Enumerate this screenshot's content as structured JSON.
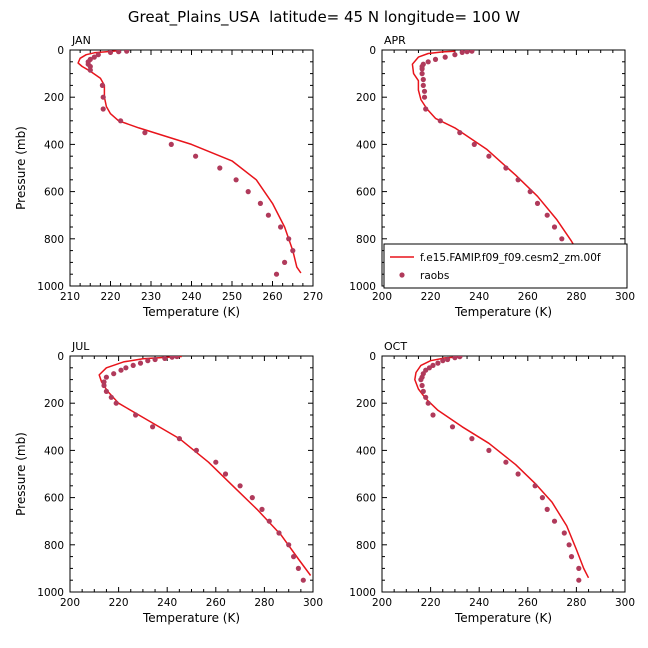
{
  "figure": {
    "title": "Great_Plains_USA  latitude= 45 N longitude= 100 W"
  },
  "colors": {
    "model_line": "#e8141b",
    "obs_marker": "#b03a5b",
    "axis": "#000000"
  },
  "chart_data": [
    {
      "type": "line",
      "panel": "JAN",
      "xlabel": "Temperature (K)",
      "ylabel": "Pressure (mb)",
      "xlim": [
        210,
        270
      ],
      "ylim": [
        1000,
        0
      ],
      "x_ticks": [
        210,
        220,
        230,
        240,
        250,
        260,
        270
      ],
      "y_ticks": [
        0,
        200,
        400,
        600,
        800,
        1000
      ],
      "legend": null,
      "series": [
        {
          "name": "",
          "kind": "line",
          "points": [
            [
              222,
              3
            ],
            [
              219,
              7
            ],
            [
              216,
              12
            ],
            [
              214,
              20
            ],
            [
              212.5,
              35
            ],
            [
              212,
              55
            ],
            [
              213,
              70
            ],
            [
              215,
              90
            ],
            [
              217.5,
              120
            ],
            [
              218.5,
              150
            ],
            [
              218.5,
              200
            ],
            [
              219,
              240
            ],
            [
              220,
              270
            ],
            [
              222,
              300
            ],
            [
              227,
              330
            ],
            [
              240,
              400
            ],
            [
              250,
              470
            ],
            [
              256,
              550
            ],
            [
              260,
              650
            ],
            [
              263,
              750
            ],
            [
              265,
              850
            ],
            [
              266,
              920
            ],
            [
              267,
              945
            ]
          ]
        },
        {
          "name": "",
          "kind": "markers",
          "points": [
            [
              224,
              5
            ],
            [
              222,
              7
            ],
            [
              220,
              10
            ],
            [
              217,
              20
            ],
            [
              216,
              30
            ],
            [
              215,
              40
            ],
            [
              214.5,
              50
            ],
            [
              214.5,
              60
            ],
            [
              215,
              70
            ],
            [
              215,
              85
            ],
            [
              218,
              150
            ],
            [
              218.2,
              200
            ],
            [
              218.2,
              250
            ],
            [
              222.5,
              300
            ],
            [
              228.5,
              350
            ],
            [
              235,
              400
            ],
            [
              241,
              450
            ],
            [
              247,
              500
            ],
            [
              251,
              550
            ],
            [
              254,
              600
            ],
            [
              257,
              650
            ],
            [
              259,
              700
            ],
            [
              262,
              750
            ],
            [
              264,
              800
            ],
            [
              265,
              850
            ],
            [
              263,
              900
            ],
            [
              261,
              950
            ]
          ]
        }
      ]
    },
    {
      "type": "line",
      "panel": "APR",
      "xlabel": "Temperature (K)",
      "ylabel": "",
      "xlim": [
        200,
        300
      ],
      "ylim": [
        1000,
        0
      ],
      "x_ticks": [
        200,
        220,
        240,
        260,
        280,
        300
      ],
      "y_ticks": [
        0,
        200,
        400,
        600,
        800,
        1000
      ],
      "legend": {
        "position": "lower-right",
        "entries": [
          {
            "label": "f.e15.FAMIP.f09_f09.cesm2_zm.00f",
            "kind": "line"
          },
          {
            "label": "raobs",
            "kind": "markers"
          }
        ]
      },
      "series": [
        {
          "name": "f.e15.FAMIP.f09_f09.cesm2_zm.00f",
          "kind": "line",
          "points": [
            [
              230,
              5
            ],
            [
              225,
              8
            ],
            [
              219,
              15
            ],
            [
              215,
              30
            ],
            [
              212.5,
              60
            ],
            [
              213,
              100
            ],
            [
              215,
              130
            ],
            [
              215,
              170
            ],
            [
              216,
              210
            ],
            [
              218.5,
              250
            ],
            [
              222,
              290
            ],
            [
              230,
              330
            ],
            [
              243,
              420
            ],
            [
              255,
              530
            ],
            [
              264,
              620
            ],
            [
              272,
              720
            ],
            [
              278,
              810
            ],
            [
              282,
              880
            ],
            [
              285,
              930
            ]
          ]
        },
        {
          "name": "raobs",
          "kind": "markers",
          "points": [
            [
              237,
              5
            ],
            [
              235,
              7
            ],
            [
              233,
              10
            ],
            [
              230,
              20
            ],
            [
              226,
              30
            ],
            [
              222,
              40
            ],
            [
              219,
              50
            ],
            [
              217,
              60
            ],
            [
              216.5,
              70
            ],
            [
              216.5,
              80
            ],
            [
              216.5,
              100
            ],
            [
              217,
              125
            ],
            [
              217,
              150
            ],
            [
              217.5,
              175
            ],
            [
              217.5,
              200
            ],
            [
              218,
              250
            ],
            [
              224,
              300
            ],
            [
              232,
              350
            ],
            [
              238,
              400
            ],
            [
              244,
              450
            ],
            [
              251,
              500
            ],
            [
              256,
              550
            ],
            [
              261,
              600
            ],
            [
              264,
              650
            ],
            [
              268,
              700
            ],
            [
              271,
              750
            ],
            [
              274,
              800
            ],
            [
              276,
              850
            ],
            [
              279,
              900
            ],
            [
              280,
              950
            ]
          ]
        }
      ]
    },
    {
      "type": "line",
      "panel": "JUL",
      "xlabel": "Temperature (K)",
      "ylabel": "Pressure (mb)",
      "xlim": [
        200,
        300
      ],
      "ylim": [
        1000,
        0
      ],
      "x_ticks": [
        200,
        220,
        240,
        260,
        280,
        300
      ],
      "y_ticks": [
        0,
        200,
        400,
        600,
        800,
        1000
      ],
      "legend": null,
      "series": [
        {
          "name": "",
          "kind": "line",
          "points": [
            [
              246,
              2
            ],
            [
              240,
              5
            ],
            [
              230,
              12
            ],
            [
              222,
              25
            ],
            [
              215,
              50
            ],
            [
              212,
              80
            ],
            [
              213,
              110
            ],
            [
              215.5,
              150
            ],
            [
              220,
              200
            ],
            [
              230,
              260
            ],
            [
              245,
              350
            ],
            [
              257,
              450
            ],
            [
              268,
              560
            ],
            [
              277,
              650
            ],
            [
              287,
              760
            ],
            [
              294,
              860
            ],
            [
              299,
              930
            ]
          ]
        },
        {
          "name": "",
          "kind": "markers",
          "points": [
            [
              244,
              2
            ],
            [
              242,
              5
            ],
            [
              239,
              10
            ],
            [
              235,
              15
            ],
            [
              232,
              20
            ],
            [
              229,
              30
            ],
            [
              226,
              40
            ],
            [
              223,
              50
            ],
            [
              221,
              60
            ],
            [
              218,
              75
            ],
            [
              215,
              90
            ],
            [
              214,
              110
            ],
            [
              214,
              125
            ],
            [
              215,
              150
            ],
            [
              217,
              175
            ],
            [
              219,
              200
            ],
            [
              227,
              250
            ],
            [
              234,
              300
            ],
            [
              245,
              350
            ],
            [
              252,
              400
            ],
            [
              260,
              450
            ],
            [
              264,
              500
            ],
            [
              270,
              550
            ],
            [
              275,
              600
            ],
            [
              279,
              650
            ],
            [
              282,
              700
            ],
            [
              286,
              750
            ],
            [
              290,
              800
            ],
            [
              292,
              850
            ],
            [
              294,
              900
            ],
            [
              296,
              950
            ]
          ]
        }
      ]
    },
    {
      "type": "line",
      "panel": "OCT",
      "xlabel": "Temperature (K)",
      "ylabel": "",
      "xlim": [
        200,
        300
      ],
      "ylim": [
        1000,
        0
      ],
      "x_ticks": [
        200,
        220,
        240,
        260,
        280,
        300
      ],
      "y_ticks": [
        0,
        200,
        400,
        600,
        800,
        1000
      ],
      "legend": null,
      "series": [
        {
          "name": "",
          "kind": "line",
          "points": [
            [
              233,
              3
            ],
            [
              226,
              8
            ],
            [
              220,
              20
            ],
            [
              216,
              40
            ],
            [
              214,
              70
            ],
            [
              213.5,
              100
            ],
            [
              215,
              140
            ],
            [
              218,
              180
            ],
            [
              223,
              230
            ],
            [
              233,
              300
            ],
            [
              244,
              370
            ],
            [
              255,
              460
            ],
            [
              263,
              540
            ],
            [
              270,
              620
            ],
            [
              276,
              720
            ],
            [
              280,
              820
            ],
            [
              283,
              900
            ],
            [
              285,
              940
            ]
          ]
        },
        {
          "name": "",
          "kind": "markers",
          "points": [
            [
              232,
              3
            ],
            [
              230,
              7
            ],
            [
              227,
              15
            ],
            [
              225,
              20
            ],
            [
              223,
              30
            ],
            [
              221,
              40
            ],
            [
              219.5,
              50
            ],
            [
              218,
              60
            ],
            [
              217,
              75
            ],
            [
              216.5,
              90
            ],
            [
              216,
              100
            ],
            [
              216.5,
              125
            ],
            [
              217,
              150
            ],
            [
              218,
              175
            ],
            [
              219,
              200
            ],
            [
              221,
              250
            ],
            [
              229,
              300
            ],
            [
              237,
              350
            ],
            [
              244,
              400
            ],
            [
              251,
              450
            ],
            [
              256,
              500
            ],
            [
              263,
              550
            ],
            [
              266,
              600
            ],
            [
              268,
              650
            ],
            [
              271,
              700
            ],
            [
              275,
              750
            ],
            [
              277,
              800
            ],
            [
              278,
              850
            ],
            [
              281,
              900
            ],
            [
              281,
              950
            ]
          ]
        }
      ]
    }
  ]
}
